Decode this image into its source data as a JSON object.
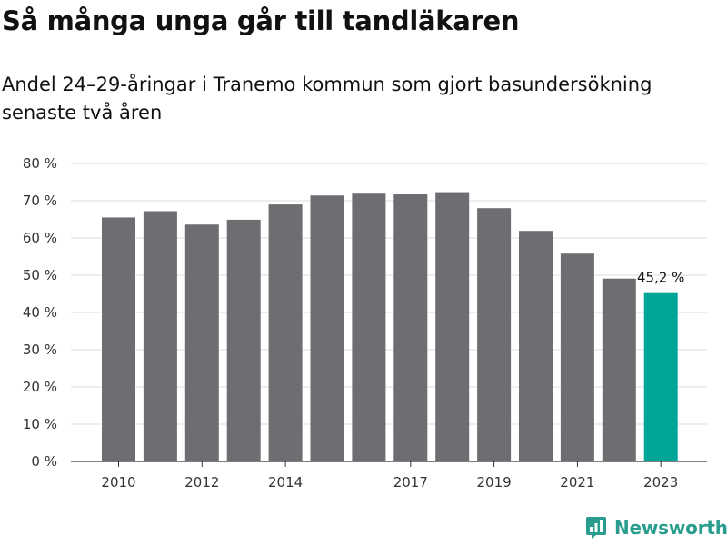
{
  "title": "Så många unga går till tandläkaren",
  "subtitle": "Andel 24–29-åringar i Tranemo kommun som gjort basundersökning senaste två åren",
  "brand": "Newsworthy",
  "colors": {
    "bar": "#6d6d72",
    "highlight": "#00a59a",
    "grid": "#dddddd",
    "text": "#333333",
    "brand": "#2a9d8f"
  },
  "chart_data": {
    "type": "bar",
    "categories": [
      "2010",
      "2011",
      "2012",
      "2013",
      "2014",
      "2015",
      "2016",
      "2017",
      "2018",
      "2019",
      "2020",
      "2021",
      "2022",
      "2023"
    ],
    "x_tick_labels": [
      "2010",
      "",
      "2012",
      "",
      "2014",
      "",
      "",
      "2017",
      "",
      "2019",
      "",
      "2021",
      "",
      "2023"
    ],
    "values": [
      65.5,
      67.2,
      63.6,
      64.9,
      69.0,
      71.4,
      71.9,
      71.7,
      72.3,
      68.0,
      61.9,
      55.8,
      49.1,
      45.2
    ],
    "highlight_index": 13,
    "data_labels": [
      {
        "index": 13,
        "text": "45,2 %"
      }
    ],
    "y_ticks": [
      0,
      10,
      20,
      30,
      40,
      50,
      60,
      70,
      80
    ],
    "y_tick_labels": [
      "0 %",
      "10 %",
      "20 %",
      "30 %",
      "40 %",
      "50 %",
      "60 %",
      "70 %",
      "80 %"
    ],
    "ylim": [
      0,
      80
    ],
    "grid": true,
    "xlabel": "",
    "ylabel": ""
  }
}
